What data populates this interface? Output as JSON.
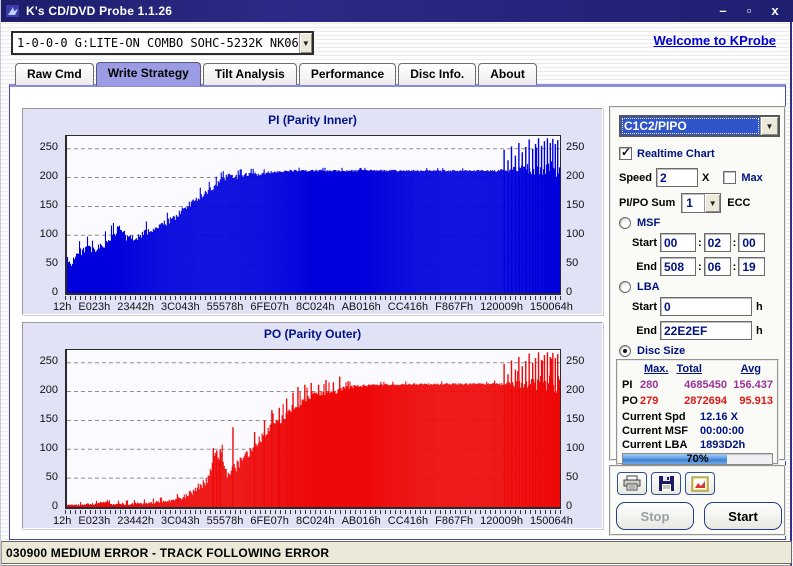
{
  "window": {
    "title": "K's CD/DVD Probe 1.1.26",
    "controls": {
      "minimize": "–",
      "maximize": "▫",
      "close": "x"
    }
  },
  "toolbar": {
    "drive_combo": "1-0-0-0 G:LITE-ON COMBO SOHC-5232K NK06",
    "welcome_link": "Welcome to KProbe"
  },
  "tabs": [
    {
      "label": "Raw Cmd",
      "active": false
    },
    {
      "label": "Write Strategy",
      "active": true
    },
    {
      "label": "Tilt Analysis",
      "active": false
    },
    {
      "label": "Performance",
      "active": false
    },
    {
      "label": "Disc Info.",
      "active": false
    },
    {
      "label": "About",
      "active": false
    }
  ],
  "chart_data": [
    {
      "type": "area",
      "title": "PI (Parity Inner)",
      "color": "#0000dd",
      "seed": 3,
      "ylim": [
        0,
        272
      ],
      "y_ticks": [
        0,
        50,
        100,
        150,
        200,
        250
      ],
      "grid": "dashed",
      "x_tick_labels": [
        "12h",
        "E023h",
        "23442h",
        "3C043h",
        "55578h",
        "6FE07h",
        "8C024h",
        "AB016h",
        "CC416h",
        "F867Fh",
        "120009h",
        "150064h"
      ],
      "envelope": [
        [
          0,
          60
        ],
        [
          0.005,
          48
        ],
        [
          0.012,
          58
        ],
        [
          0.02,
          68
        ],
        [
          0.03,
          73
        ],
        [
          0.04,
          79
        ],
        [
          0.05,
          71
        ],
        [
          0.06,
          75
        ],
        [
          0.07,
          81
        ],
        [
          0.08,
          89
        ],
        [
          0.09,
          97
        ],
        [
          0.1,
          107
        ],
        [
          0.105,
          113
        ],
        [
          0.115,
          101
        ],
        [
          0.125,
          93
        ],
        [
          0.14,
          97
        ],
        [
          0.16,
          105
        ],
        [
          0.18,
          112
        ],
        [
          0.2,
          120
        ],
        [
          0.22,
          132
        ],
        [
          0.24,
          147
        ],
        [
          0.26,
          162
        ],
        [
          0.28,
          173
        ],
        [
          0.3,
          186
        ],
        [
          0.315,
          197
        ],
        [
          0.33,
          204
        ],
        [
          0.345,
          200
        ],
        [
          0.36,
          206
        ],
        [
          0.39,
          206
        ],
        [
          0.42,
          210
        ],
        [
          0.46,
          212
        ],
        [
          0.55,
          212
        ],
        [
          0.65,
          212
        ],
        [
          0.75,
          212
        ],
        [
          0.85,
          212
        ],
        [
          0.88,
          212
        ],
        [
          0.92,
          213
        ],
        [
          0.96,
          214
        ],
        [
          1,
          214
        ]
      ],
      "noise": [
        [
          0,
          7
        ],
        [
          0.1,
          8
        ],
        [
          0.33,
          5
        ],
        [
          0.42,
          2
        ],
        [
          0.86,
          1.5
        ],
        [
          0.9,
          6
        ],
        [
          0.95,
          14
        ],
        [
          1,
          18
        ]
      ],
      "spikes": [
        [
          0.887,
          248
        ],
        [
          0.895,
          230
        ],
        [
          0.902,
          254
        ],
        [
          0.91,
          238
        ],
        [
          0.917,
          260
        ],
        [
          0.924,
          244
        ],
        [
          0.931,
          253
        ],
        [
          0.938,
          266
        ],
        [
          0.945,
          250
        ],
        [
          0.951,
          258
        ],
        [
          0.957,
          268
        ],
        [
          0.963,
          255
        ],
        [
          0.969,
          263
        ],
        [
          0.975,
          270
        ],
        [
          0.981,
          260
        ],
        [
          0.986,
          267
        ],
        [
          0.991,
          258
        ],
        [
          0.996,
          265
        ]
      ]
    },
    {
      "type": "area",
      "title": "PO (Parity Outer)",
      "color": "#ee0808",
      "seed": 9,
      "ylim": [
        0,
        272
      ],
      "y_ticks": [
        0,
        50,
        100,
        150,
        200,
        250
      ],
      "grid": "dashed",
      "x_tick_labels": [
        "12h",
        "E023h",
        "23442h",
        "3C043h",
        "55578h",
        "6FE07h",
        "8C024h",
        "AB016h",
        "CC416h",
        "F867Fh",
        "120009h",
        "150064h"
      ],
      "envelope": [
        [
          0,
          4
        ],
        [
          0.03,
          4
        ],
        [
          0.06,
          6
        ],
        [
          0.07,
          9
        ],
        [
          0.09,
          5
        ],
        [
          0.12,
          5
        ],
        [
          0.15,
          6
        ],
        [
          0.18,
          8
        ],
        [
          0.2,
          10
        ],
        [
          0.22,
          13
        ],
        [
          0.24,
          19
        ],
        [
          0.26,
          30
        ],
        [
          0.275,
          40
        ],
        [
          0.285,
          50
        ],
        [
          0.295,
          78
        ],
        [
          0.3,
          92
        ],
        [
          0.305,
          84
        ],
        [
          0.312,
          93
        ],
        [
          0.32,
          60
        ],
        [
          0.33,
          55
        ],
        [
          0.34,
          68
        ],
        [
          0.35,
          77
        ],
        [
          0.37,
          95
        ],
        [
          0.39,
          115
        ],
        [
          0.41,
          133
        ],
        [
          0.43,
          150
        ],
        [
          0.45,
          165
        ],
        [
          0.47,
          178
        ],
        [
          0.49,
          190
        ],
        [
          0.5,
          198
        ],
        [
          0.515,
          194
        ],
        [
          0.53,
          202
        ],
        [
          0.545,
          198
        ],
        [
          0.56,
          205
        ],
        [
          0.58,
          209
        ],
        [
          0.62,
          211
        ],
        [
          0.7,
          213
        ],
        [
          0.8,
          213
        ],
        [
          0.9,
          213
        ],
        [
          1,
          214
        ]
      ],
      "noise": [
        [
          0,
          1.5
        ],
        [
          0.22,
          3
        ],
        [
          0.27,
          8
        ],
        [
          0.33,
          10
        ],
        [
          0.4,
          9
        ],
        [
          0.5,
          7
        ],
        [
          0.56,
          4
        ],
        [
          0.62,
          2
        ],
        [
          0.86,
          1.5
        ],
        [
          0.9,
          6
        ],
        [
          0.95,
          14
        ],
        [
          1,
          18
        ]
      ],
      "spikes": [
        [
          0.296,
          102
        ],
        [
          0.303,
          98
        ],
        [
          0.31,
          100
        ],
        [
          0.336,
          138
        ],
        [
          0.38,
          130
        ],
        [
          0.4,
          150
        ],
        [
          0.415,
          168
        ],
        [
          0.43,
          172
        ],
        [
          0.445,
          188
        ],
        [
          0.458,
          198
        ],
        [
          0.468,
          208
        ],
        [
          0.482,
          212
        ],
        [
          0.495,
          215
        ],
        [
          0.51,
          212
        ],
        [
          0.525,
          220
        ],
        [
          0.54,
          216
        ],
        [
          0.553,
          226
        ],
        [
          0.57,
          218
        ],
        [
          0.887,
          248
        ],
        [
          0.895,
          230
        ],
        [
          0.902,
          254
        ],
        [
          0.91,
          238
        ],
        [
          0.917,
          260
        ],
        [
          0.924,
          244
        ],
        [
          0.931,
          253
        ],
        [
          0.938,
          266
        ],
        [
          0.945,
          250
        ],
        [
          0.951,
          258
        ],
        [
          0.957,
          268
        ],
        [
          0.963,
          255
        ],
        [
          0.969,
          263
        ],
        [
          0.975,
          270
        ],
        [
          0.981,
          260
        ],
        [
          0.986,
          267
        ],
        [
          0.991,
          258
        ],
        [
          0.996,
          265
        ]
      ]
    }
  ],
  "panel": {
    "mode_select": {
      "value": "C1C2/PIPO"
    },
    "realtime_chart": {
      "label": "Realtime Chart",
      "checked": true
    },
    "speed": {
      "label": "Speed",
      "value": "2",
      "unit": "X"
    },
    "max": {
      "label": "Max",
      "checked": false
    },
    "pipo_sum": {
      "label": "PI/PO Sum",
      "value": "1",
      "suffix": "ECC"
    },
    "msf": {
      "label": "MSF",
      "selected": false,
      "start_label": "Start",
      "start": [
        "00",
        "02",
        "00"
      ],
      "end_label": "End",
      "end": [
        "508",
        "06",
        "19"
      ],
      "separator": ":"
    },
    "lba": {
      "label": "LBA",
      "selected": false,
      "start_label": "Start",
      "start": "0",
      "end_label": "End",
      "end": "22E2EF",
      "unit": "h"
    },
    "disc_size": {
      "label": "Disc Size",
      "selected": true
    }
  },
  "stats": {
    "headers": [
      "Max.",
      "Total",
      "Avg"
    ],
    "rows": [
      {
        "label": "PI",
        "max": "280",
        "total": "4685450",
        "avg": "156.437",
        "color": "#993399"
      },
      {
        "label": "PO",
        "max": "279",
        "total": "2872694",
        "avg": "95.913",
        "color": "#e01818"
      }
    ],
    "current": [
      {
        "label": "Current Spd",
        "value": "12.16 X"
      },
      {
        "label": "Current MSF",
        "value": "00:00:00"
      },
      {
        "label": "Current LBA",
        "value": "1893D2h"
      }
    ],
    "progress": {
      "percent": 70,
      "label": "70%"
    }
  },
  "actions": {
    "icons": [
      "print",
      "save",
      "capture"
    ],
    "stop": {
      "label": "Stop",
      "enabled": false
    },
    "start": {
      "label": "Start",
      "enabled": true
    }
  },
  "status_bar": {
    "text": "030900 MEDIUM ERROR - TRACK FOLLOWING ERROR"
  },
  "colors": {
    "titlebar": "#24247c",
    "active_tab": "#9c9ce4",
    "panel_bg": "#e2e2f6",
    "pi_series": "#0000dd",
    "po_series": "#ee0808",
    "pi_stat": "#993399",
    "po_stat": "#e01818",
    "value_text": "#00127f",
    "selection": "#2f55c8",
    "link": "#0000cc",
    "status_bg": "#ece9d8",
    "progress_fill": "#5d9be2"
  }
}
